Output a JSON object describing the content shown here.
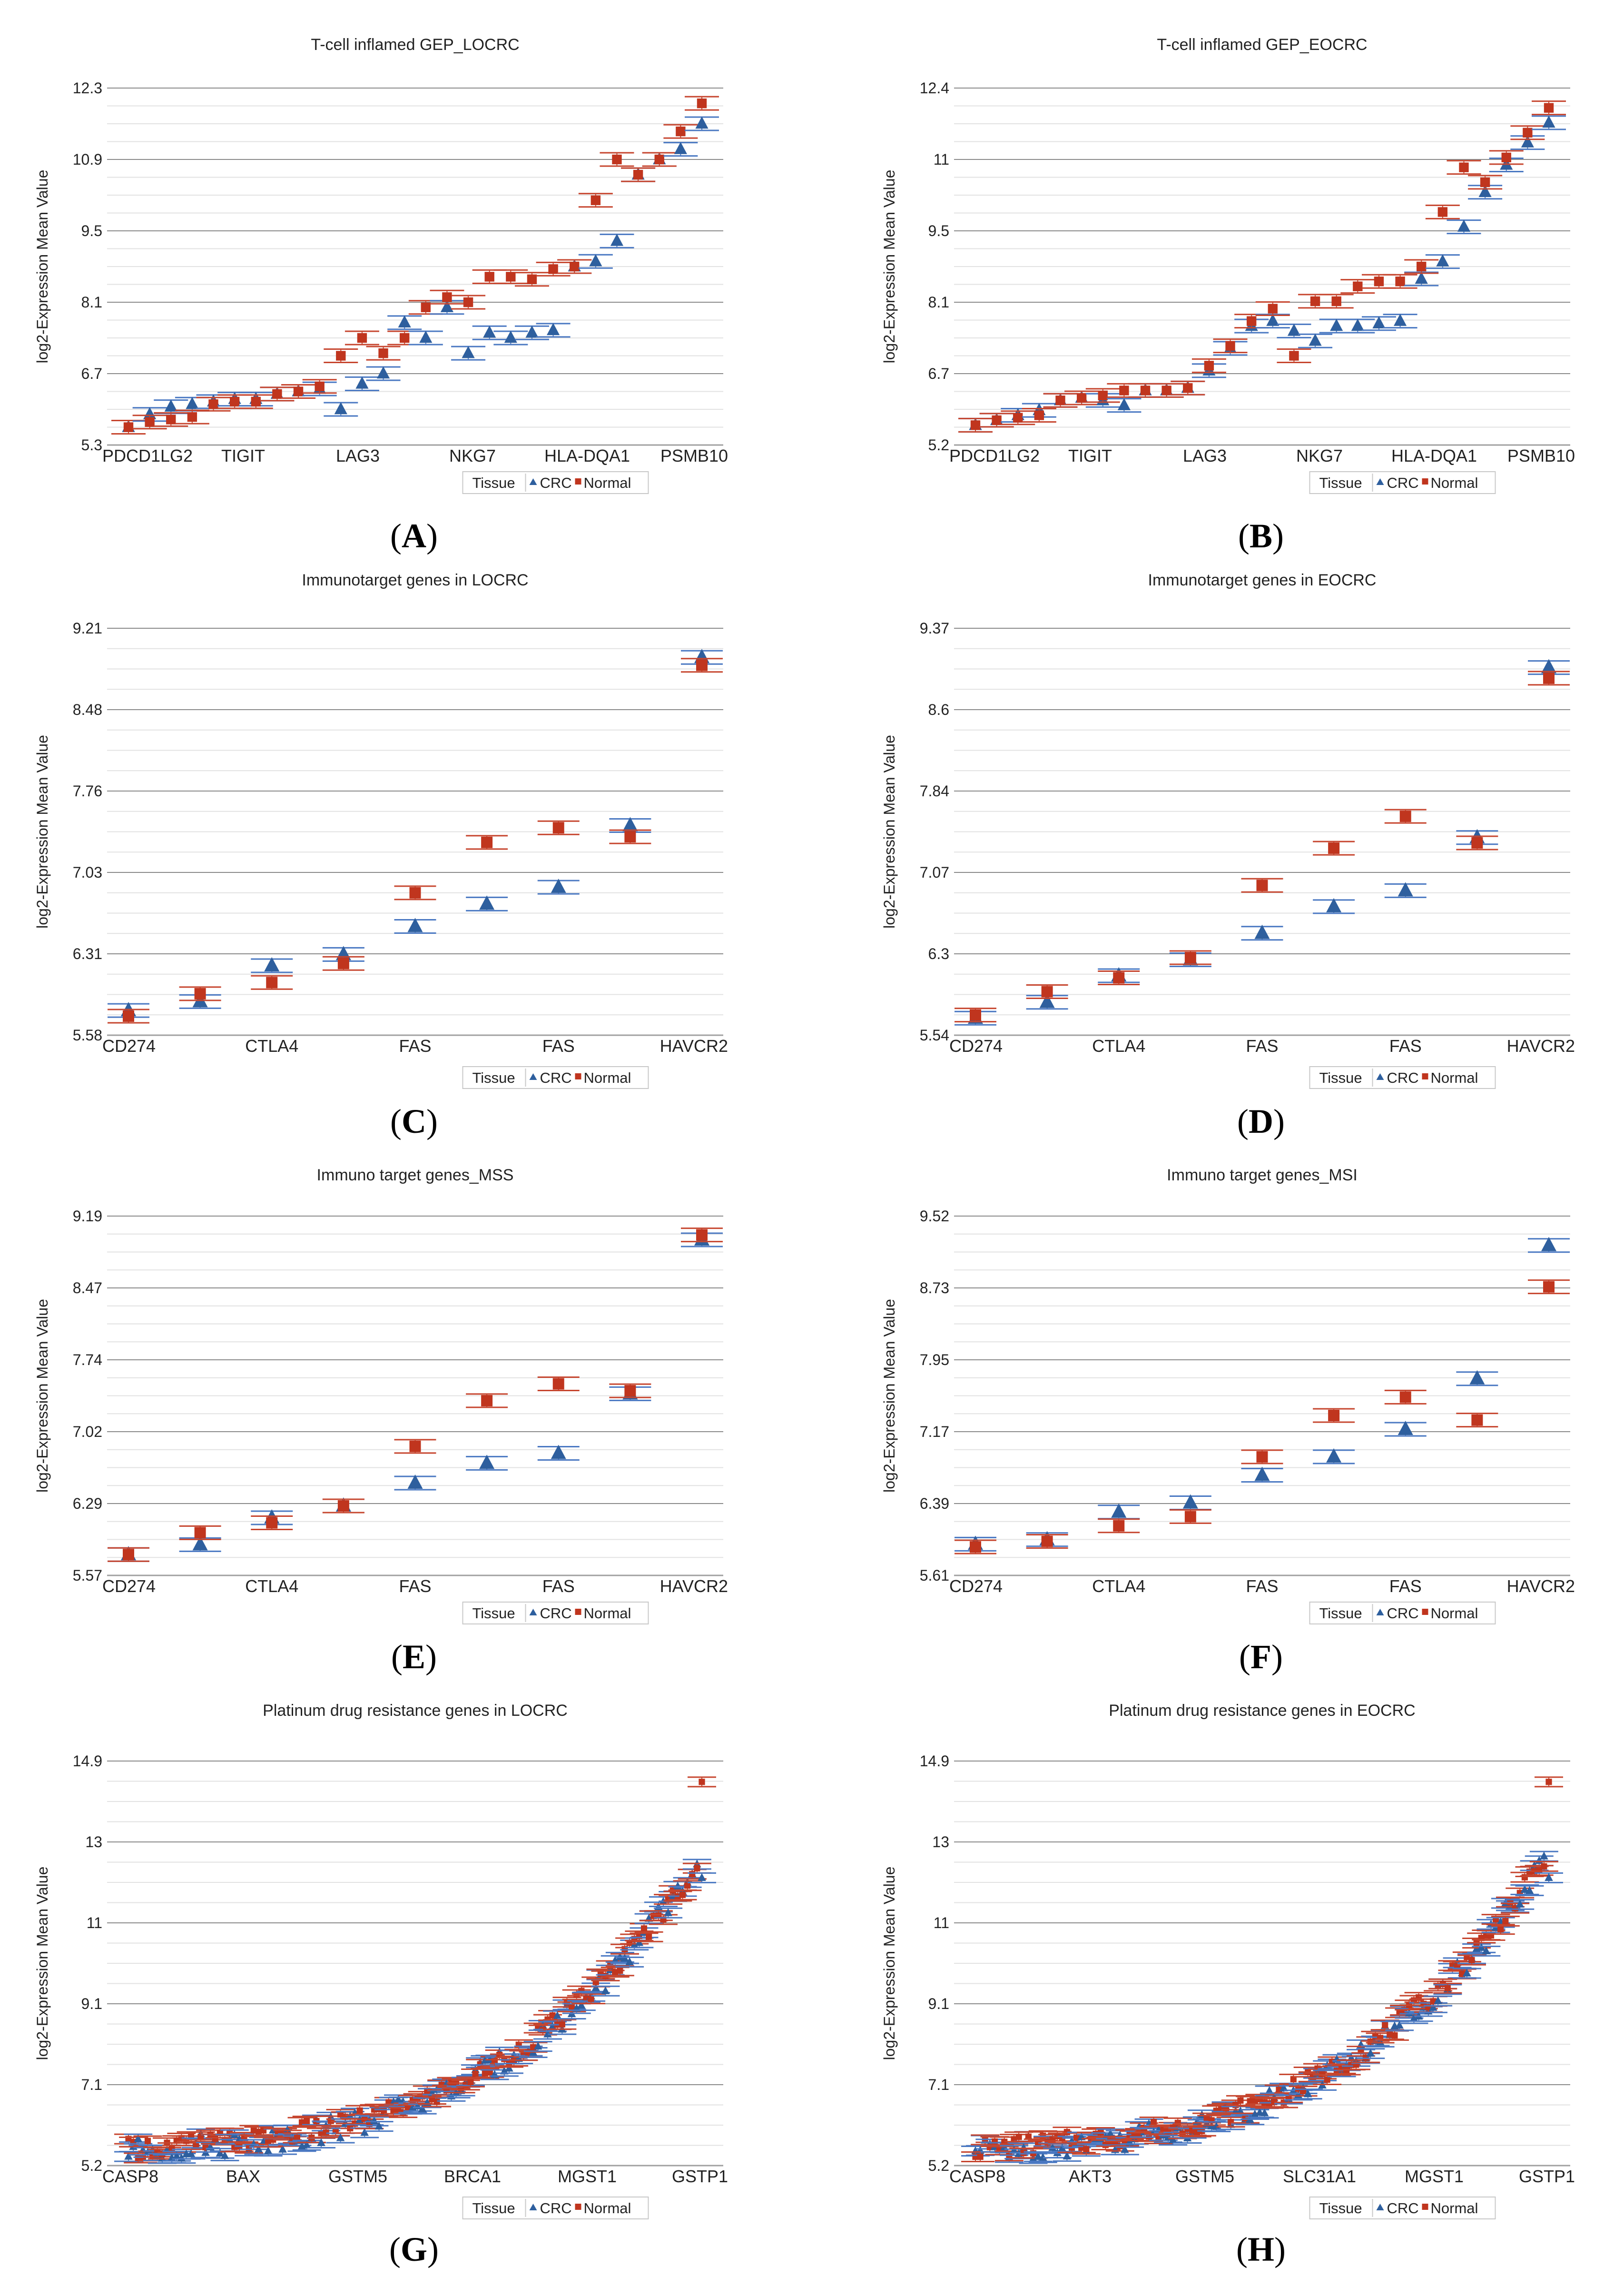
{
  "colors": {
    "crc": "#2e5f9e",
    "crc_err": "#4a78c2",
    "normal": "#c0351e",
    "normal_err": "#c6452e",
    "grid_major": "#8a8a8a",
    "grid_minor": "#e2e2e2",
    "axis": "#a0a0a0"
  },
  "legend": {
    "label": "Tissue",
    "crc": "CRC",
    "normal": "Normal"
  },
  "y_axis_label": "log2-Expression Mean Value",
  "chart_data": [
    {
      "panel": "A",
      "type": "scatter",
      "title": "T-cell inflamed GEP_LOCRC",
      "ylabel": "log2-Expression Mean Value",
      "ylim": [
        5.3,
        12.3
      ],
      "yticks": [
        "12.3",
        "10.9",
        "9.5",
        "8.1",
        "6.7",
        "5.3"
      ],
      "category_labels": [
        "PDCD1LG2",
        "TIGIT",
        "LAG3",
        "NKG7",
        "HLA-DQA1",
        "PSMB10"
      ],
      "series": [
        {
          "name": "CRC",
          "values": [
            5.65,
            5.9,
            6.05,
            6.1,
            6.15,
            6.2,
            6.2,
            6.3,
            6.35,
            6.4,
            6.0,
            6.5,
            6.7,
            7.7,
            7.4,
            8.0,
            7.1,
            7.5,
            7.4,
            7.5,
            7.55,
            8.8,
            8.9,
            9.3,
            10.6,
            10.9,
            11.1,
            11.6
          ]
        },
        {
          "name": "Normal",
          "values": [
            5.65,
            5.75,
            5.8,
            5.85,
            6.1,
            6.15,
            6.15,
            6.3,
            6.35,
            6.45,
            7.05,
            7.4,
            7.1,
            7.4,
            8.0,
            8.2,
            8.1,
            8.6,
            8.6,
            8.55,
            8.75,
            8.8,
            10.1,
            10.9,
            10.6,
            10.9,
            11.45,
            12.0
          ]
        }
      ]
    },
    {
      "panel": "B",
      "type": "scatter",
      "title": "T-cell inflamed GEP_EOCRC",
      "ylabel": "log2-Expression Mean Value",
      "ylim": [
        5.2,
        12.4
      ],
      "yticks": [
        "12.4",
        "11",
        "9.5",
        "8.1",
        "6.7",
        "5.2"
      ],
      "category_labels": [
        "PDCD1LG2",
        "TIGIT",
        "LAG3",
        "NKG7",
        "HLA-DQA1",
        "PSMB10"
      ],
      "series": [
        {
          "name": "CRC",
          "values": [
            5.6,
            5.7,
            5.8,
            5.9,
            6.1,
            6.15,
            6.1,
            6.0,
            6.3,
            6.3,
            6.35,
            6.7,
            7.15,
            7.6,
            7.7,
            7.5,
            7.3,
            7.6,
            7.6,
            7.65,
            7.7,
            8.55,
            8.9,
            9.6,
            10.3,
            10.85,
            11.3,
            11.7
          ]
        },
        {
          "name": "Normal",
          "values": [
            5.6,
            5.7,
            5.75,
            5.8,
            6.1,
            6.15,
            6.2,
            6.3,
            6.3,
            6.3,
            6.35,
            6.8,
            7.2,
            7.7,
            7.95,
            7.0,
            8.1,
            8.1,
            8.4,
            8.5,
            8.5,
            8.8,
            9.9,
            10.8,
            10.5,
            11.0,
            11.5,
            12.0
          ]
        }
      ]
    },
    {
      "panel": "C",
      "type": "scatter",
      "title": "Immunotarget genes in LOCRC",
      "ylabel": "log2-Expression Mean Value",
      "ylim": [
        5.58,
        9.21
      ],
      "yticks": [
        "9.21",
        "8.48",
        "7.76",
        "7.03",
        "6.31",
        "5.58"
      ],
      "category_labels": [
        "CD274",
        "CTLA4",
        "FAS",
        "FAS",
        "HAVCR2"
      ],
      "series": [
        {
          "name": "CRC",
          "values": [
            5.8,
            5.88,
            6.2,
            6.3,
            6.55,
            6.75,
            6.9,
            7.45,
            8.95
          ]
        },
        {
          "name": "Normal",
          "values": [
            5.75,
            5.95,
            6.05,
            6.22,
            6.85,
            7.3,
            7.43,
            7.35,
            8.88
          ]
        }
      ]
    },
    {
      "panel": "D",
      "type": "scatter",
      "title": "Immunotarget genes in EOCRC",
      "ylabel": "log2-Expression Mean Value",
      "ylim": [
        5.54,
        9.37
      ],
      "yticks": [
        "9.37",
        "8.6",
        "7.84",
        "7.07",
        "6.3",
        "5.54"
      ],
      "category_labels": [
        "CD274",
        "CTLA4",
        "FAS",
        "FAS",
        "HAVCR2"
      ],
      "series": [
        {
          "name": "CRC",
          "values": [
            5.7,
            5.85,
            6.1,
            6.25,
            6.5,
            6.75,
            6.9,
            7.4,
            9.0
          ]
        },
        {
          "name": "Normal",
          "values": [
            5.73,
            5.95,
            6.08,
            6.27,
            6.95,
            7.3,
            7.6,
            7.35,
            8.9
          ]
        }
      ]
    },
    {
      "panel": "E",
      "type": "scatter",
      "title": "Immuno target genes_MSS",
      "ylabel": "log2-Expression Mean Value",
      "ylim": [
        5.57,
        9.19
      ],
      "yticks": [
        "9.19",
        "8.47",
        "7.74",
        "7.02",
        "6.29",
        "5.57"
      ],
      "category_labels": [
        "CD274",
        "CTLA4",
        "FAS",
        "FAS",
        "HAVCR2"
      ],
      "series": [
        {
          "name": "CRC",
          "values": [
            5.78,
            5.88,
            6.15,
            6.27,
            6.5,
            6.7,
            6.8,
            7.4,
            8.95
          ]
        },
        {
          "name": "Normal",
          "values": [
            5.78,
            6.0,
            6.1,
            6.27,
            6.87,
            7.33,
            7.5,
            7.43,
            9.0
          ]
        }
      ]
    },
    {
      "panel": "F",
      "type": "scatter",
      "title": "Immuno target genes_MSI",
      "ylabel": "log2-Expression Mean Value",
      "ylim": [
        5.61,
        9.52
      ],
      "yticks": [
        "9.52",
        "8.73",
        "7.95",
        "7.17",
        "6.39",
        "5.61"
      ],
      "category_labels": [
        "CD274",
        "CTLA4",
        "FAS",
        "FAS",
        "HAVCR2"
      ],
      "series": [
        {
          "name": "CRC",
          "values": [
            5.95,
            6.0,
            6.3,
            6.4,
            6.7,
            6.9,
            7.2,
            7.75,
            9.2
          ]
        },
        {
          "name": "Normal",
          "values": [
            5.92,
            5.98,
            6.15,
            6.25,
            6.9,
            7.35,
            7.55,
            7.3,
            8.75
          ]
        }
      ]
    },
    {
      "panel": "G",
      "type": "scatter",
      "title": "Platinum drug resistance genes in LOCRC",
      "ylabel": "log2-Expression Mean Value",
      "ylim": [
        5.2,
        14.9
      ],
      "yticks": [
        "14.9",
        "13",
        "11",
        "9.1",
        "7.1",
        "5.2"
      ],
      "category_labels": [
        "CASP8",
        "BAX",
        "GSTM5",
        "BRCA1",
        "MGST1",
        "GSTP1"
      ],
      "curve": {
        "points": 120,
        "start": 5.6,
        "end": 11.7,
        "shape_power": 3.2,
        "final_normal": 14.4,
        "final_crc": 12.1
      }
    },
    {
      "panel": "H",
      "type": "scatter",
      "title": "Platinum drug resistance genes in EOCRC",
      "ylabel": "log2-Expression Mean Value",
      "ylim": [
        5.2,
        14.9
      ],
      "yticks": [
        "14.9",
        "13",
        "11",
        "9.1",
        "7.1",
        "5.2"
      ],
      "category_labels": [
        "CASP8",
        "AKT3",
        "GSTM5",
        "SLC31A1",
        "MGST1",
        "GSTP1"
      ],
      "curve": {
        "points": 120,
        "start": 5.6,
        "end": 11.8,
        "shape_power": 3.2,
        "final_normal": 14.4,
        "final_crc": 12.1
      }
    }
  ]
}
